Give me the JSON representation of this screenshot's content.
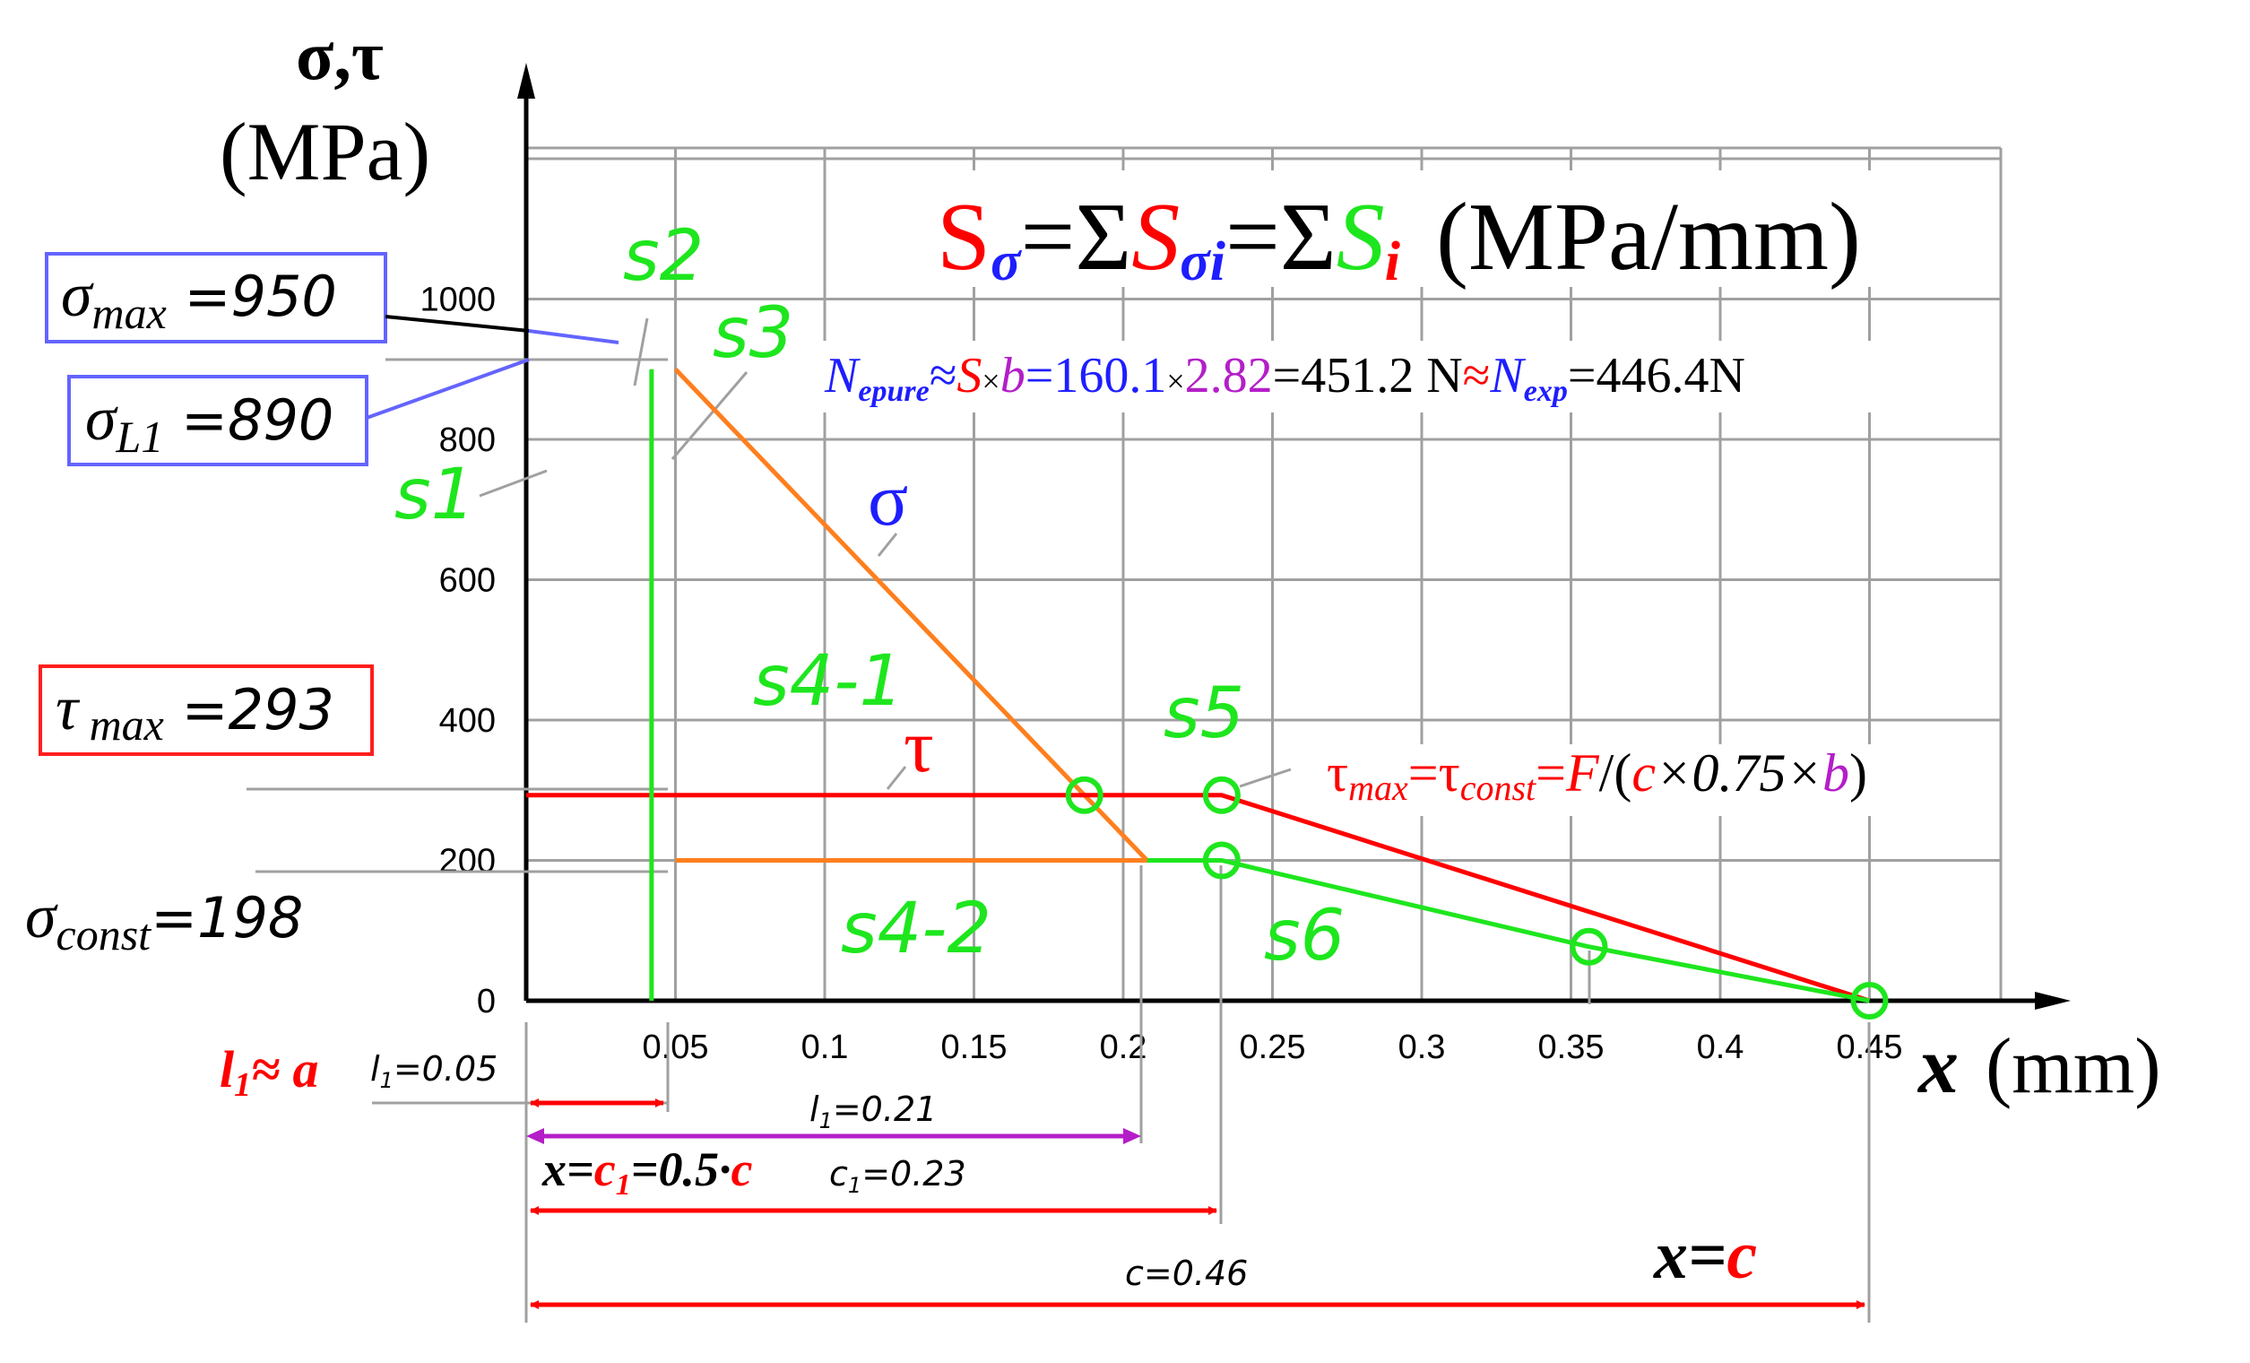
{
  "chart_data": {
    "type": "line",
    "y_label": "σ,τ",
    "y_unit": "(MPa)",
    "x_label": "x",
    "x_unit": "(mm)",
    "x_ticks": [
      "0.05",
      "0.1",
      "0.15",
      "0.2",
      "0.25",
      "0.3",
      "0.35",
      "0.4",
      "0.45"
    ],
    "y_ticks": [
      "0",
      "200",
      "400",
      "600",
      "800",
      "1000"
    ],
    "xlim": [
      0,
      0.5
    ],
    "ylim": [
      0,
      1200
    ],
    "grid": true,
    "series": [
      {
        "name": "σ",
        "color": "#ff7f1e",
        "points": [
          [
            0.05,
            900
          ],
          [
            0.208,
            200
          ],
          [
            0.05,
            200
          ]
        ]
      },
      {
        "name": "τ",
        "color": "#ff0000",
        "points": [
          [
            0,
            293
          ],
          [
            0.233,
            293
          ],
          [
            0.45,
            0
          ]
        ]
      },
      {
        "name": "",
        "color": "#1ee61e",
        "points": [
          [
            0.042,
            900
          ],
          [
            0.042,
            0
          ]
        ]
      },
      {
        "name": "",
        "color": "#1ee61e",
        "points": [
          [
            0.208,
            200
          ],
          [
            0.233,
            200
          ],
          [
            0.356,
            77
          ],
          [
            0.45,
            0
          ]
        ]
      }
    ],
    "markers": [
      [
        0.187,
        293
      ],
      [
        0.233,
        293
      ],
      [
        0.233,
        200
      ],
      [
        0.356,
        77
      ],
      [
        0.45,
        0
      ]
    ],
    "region_labels": [
      "s1",
      "s2",
      "s3",
      "s4-1",
      "s4-2",
      "s5",
      "s6"
    ],
    "boxes": {
      "sigma_max": {
        "sym": "σ",
        "sub": "max",
        "val": " =950"
      },
      "sigma_l1": {
        "sym": "σ",
        "sub": "L1",
        "val": " =890"
      },
      "tau_max": {
        "sym": "τ",
        "sub": " max",
        "val": " =293"
      }
    },
    "sigma_const": {
      "sym": "σ",
      "sub": "const",
      "val": "=198"
    },
    "formula_s": {
      "t1": "S",
      "t2": "σ",
      "t3": "=Σ",
      "t4": "S",
      "t5": "σi",
      "t6": "=Σ",
      "t7": "S",
      "t8": "i",
      "t9": "(MPa/mm)"
    },
    "formula_n": {
      "n": "N",
      "epure": "epure",
      "approx1": "≈",
      "s": "S",
      "x1": "×",
      "b": "b",
      "eq1": "=",
      "v1": "160.1",
      "x2": "×",
      "v2": "2.82",
      "eq2": "=451.2 N",
      "approx2": "≈",
      "n2": "N",
      "exp": "exp",
      "eq3": "=446.4N"
    },
    "formula_tau": {
      "tau": "τ",
      "max": "max",
      "eq1": "=τ",
      "const": "const",
      "eq2": "=",
      "F": "F",
      "slash": "/(",
      "c": "c",
      "mid": "×0.75×",
      "b": "b",
      "close": ")"
    },
    "sigma_curve_label": "σ",
    "tau_curve_label": "τ",
    "dims": {
      "l1_label_a": "l",
      "l1_label_a_sub": "1",
      "l1_label_b": "≈ a",
      "l1_005": "l",
      "l1_005_sub": "1",
      "l1_005_val": "=0.05",
      "l1_021": "l",
      "l1_021_sub": "1",
      "l1_021_val": "=0.21",
      "xc1_a": "x=",
      "xc1_b": "c",
      "xc1_c": "1",
      "xc1_d": "=0.5·",
      "xc1_e": "c",
      "c1_023": "c",
      "c1_023_sub": "1",
      "c1_023_val": "=0.23",
      "c046": "c=0.46",
      "xc_a": "x=",
      "xc_b": "c"
    },
    "colors": {
      "grid": "#a0a0a0",
      "sigma": "#ff7f1e",
      "tau": "#ff0000",
      "green": "#1ee61e",
      "blue": "#1e1eff",
      "purple": "#b41ec8",
      "box_blue": "#6464ff",
      "box_red": "#ff1e1e"
    }
  }
}
